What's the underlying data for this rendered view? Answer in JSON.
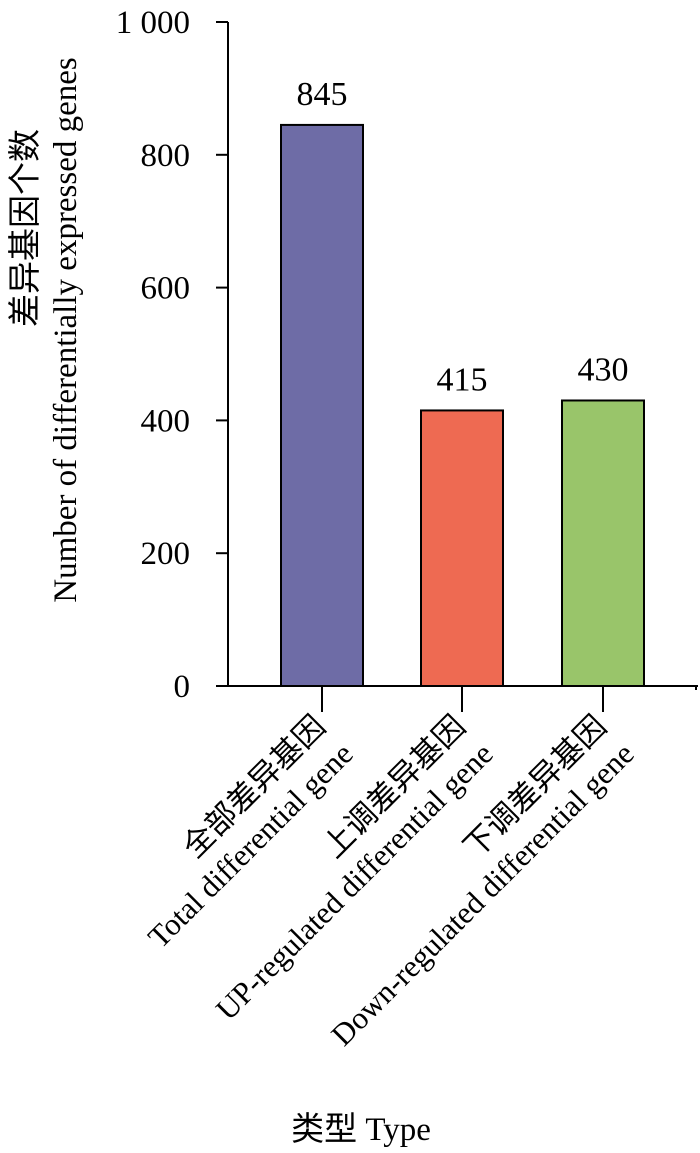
{
  "chart_data": {
    "type": "bar",
    "categories": [
      [
        "全部差异基因",
        "Total differential gene"
      ],
      [
        "上调差异基因",
        "UP-regulated differential gene"
      ],
      [
        "下调差异基因",
        "Down-regulated differential gene"
      ]
    ],
    "values": [
      845,
      415,
      430
    ],
    "data_labels": [
      "845",
      "415",
      "430"
    ],
    "colors": [
      "#6E6CA6",
      "#EE6A52",
      "#99C56A"
    ],
    "title": "",
    "xlabel": "类型 Type",
    "ylabel": [
      "差异基因个数",
      "Number of differentially expressed genes"
    ],
    "ylim": [
      0,
      1000
    ],
    "yticks": [
      0,
      200,
      400,
      600,
      800,
      1000
    ],
    "ytick_labels": [
      "0",
      "200",
      "400",
      "600",
      "800",
      "1 000"
    ],
    "grid": false,
    "legend": "none"
  }
}
